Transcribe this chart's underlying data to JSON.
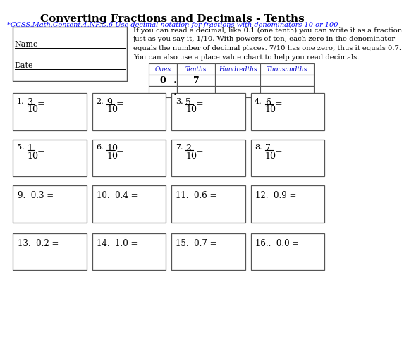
{
  "title": "Converting Fractions and Decimals - Tenths",
  "title_color": "#000000",
  "subtitle": "*CCSS.Math.Content.4.NF.C.6 Use decimal notation for fractions with denominators 10 or 100",
  "subtitle_color": "#0000FF",
  "bg_color": "#FFFFFF",
  "instruction_text": "If you can read a decimal, like 0.1 (one tenth) you can write it as a fraction\njust as you say it, 1/10. With powers of ten, each zero in the denominator\nequals the number of decimal places. 7/10 has one zero, thus it equals 0.7.\nYou can also use a place value chart to help you read decimals.",
  "name_label": "Name",
  "date_label": "Date",
  "table_headers": [
    "Ones",
    "Tenths",
    "Hundredths",
    "Thousandths"
  ],
  "fraction_problems": [
    {
      "num": "1.",
      "numerator": "3",
      "denominator": "10"
    },
    {
      "num": "2.",
      "numerator": "9",
      "denominator": "10"
    },
    {
      "num": "3.",
      "numerator": "5",
      "denominator": "10"
    },
    {
      "num": "4.",
      "numerator": "6",
      "denominator": "10"
    },
    {
      "num": "5.",
      "numerator": "1",
      "denominator": "10"
    },
    {
      "num": "6.",
      "numerator": "10",
      "denominator": "10"
    },
    {
      "num": "7.",
      "numerator": "2",
      "denominator": "10"
    },
    {
      "num": "8.",
      "numerator": "7",
      "denominator": "10"
    }
  ],
  "decimal_problems": [
    {
      "num": "9.",
      "value": "0.3"
    },
    {
      "num": "10.",
      "value": "0.4"
    },
    {
      "num": "11.",
      "value": "0.6"
    },
    {
      "num": "12.",
      "value": "0.9"
    },
    {
      "num": "13.",
      "value": "0.2"
    },
    {
      "num": "14.",
      "value": "1.0"
    },
    {
      "num": "15.",
      "value": "0.7"
    },
    {
      "num": "16..",
      "value": "0.0"
    }
  ],
  "box_border_color": "#555555",
  "text_color": "#000000",
  "header_color": "#0000CC"
}
